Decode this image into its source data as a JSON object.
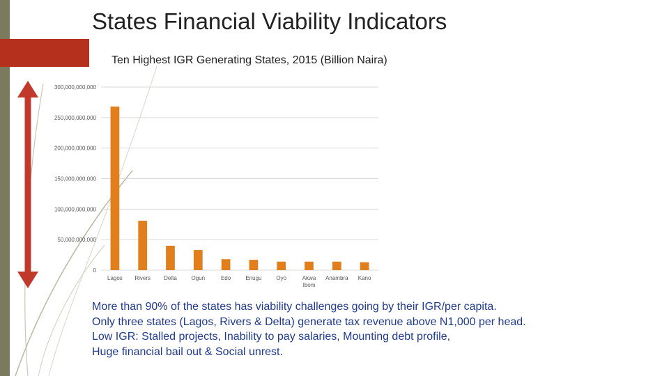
{
  "slide": {
    "title": "States Financial Viability Indicators",
    "chart_title": "Ten Highest IGR Generating States, 2015 (Billion Naira)",
    "bullets": [
      "More than 90% of the states has viability challenges going by their IGR/per capita.",
      "Only three states (Lagos, Rivers & Delta) generate tax revenue above N1,000 per head.",
      "Low IGR: Stalled projects, Inability to pay salaries, Mounting debt profile,",
      "Huge financial bail out & Social unrest."
    ],
    "colors": {
      "bar": "#e07f1c",
      "text_blue": "#1f3a8f",
      "arrow": "#c0392b",
      "banner": "#b5311e",
      "strip": "#7c7a5c"
    }
  },
  "chart_data": {
    "type": "bar",
    "title": "Ten Highest IGR Generating States, 2015 (Billion Naira)",
    "xlabel": "",
    "ylabel": "",
    "categories": [
      "Lagos",
      "Rivers",
      "Delta",
      "Ogun",
      "Edo",
      "Enugu",
      "Oyo",
      "Akwa Ibom",
      "Anambra",
      "Kano"
    ],
    "category_lines": [
      [
        "Lagos"
      ],
      [
        "Rivers"
      ],
      [
        "Delta"
      ],
      [
        "Ogun"
      ],
      [
        "Edo"
      ],
      [
        "Enugu"
      ],
      [
        "Oyo"
      ],
      [
        "Akwa",
        "Ibom"
      ],
      [
        "Anambra"
      ],
      [
        "Kano"
      ]
    ],
    "values": [
      268000000000,
      81000000000,
      40000000000,
      33000000000,
      18000000000,
      17000000000,
      14000000000,
      14000000000,
      14000000000,
      13000000000
    ],
    "yticks": [
      0,
      50000000000,
      100000000000,
      150000000000,
      200000000000,
      250000000000,
      300000000000
    ],
    "ytick_labels": [
      "0",
      "50,000,000,000",
      "100,000,000,000",
      "150,000,000,000",
      "200,000,000,000",
      "250,000,000,000",
      "300,000,000,000"
    ],
    "ylim": [
      0,
      300000000000
    ],
    "grid": true,
    "legend": "none"
  }
}
